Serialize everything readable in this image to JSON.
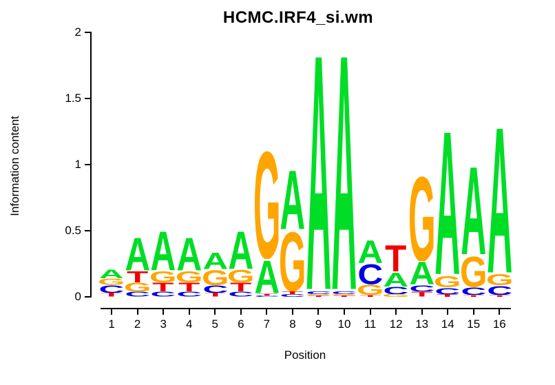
{
  "chart_data": {
    "type": "sequence_logo",
    "title": "HCMC.IRF4_si.wm",
    "xlabel": "Position",
    "ylabel": "Information content",
    "ylim": [
      0,
      2
    ],
    "ytick_values": [
      0,
      0.5,
      1,
      1.5,
      2
    ],
    "ytick_labels": [
      "0",
      "0.5",
      "1",
      "1.5",
      "2"
    ],
    "xtick_labels": [
      "1",
      "2",
      "3",
      "4",
      "5",
      "6",
      "7",
      "8",
      "9",
      "10",
      "11",
      "12",
      "13",
      "14",
      "15",
      "16"
    ],
    "base_colors": {
      "A": "#00DD26",
      "C": "#0000E5",
      "G": "#FFA500",
      "T": "#F20000"
    },
    "columns": [
      {
        "position": 1,
        "stack": [
          {
            "base": "A",
            "ic": 0.07
          },
          {
            "base": "G",
            "ic": 0.05
          },
          {
            "base": "C",
            "ic": 0.06
          },
          {
            "base": "T",
            "ic": 0.03
          }
        ]
      },
      {
        "position": 2,
        "stack": [
          {
            "base": "A",
            "ic": 0.26
          },
          {
            "base": "T",
            "ic": 0.09
          },
          {
            "base": "G",
            "ic": 0.07
          },
          {
            "base": "C",
            "ic": 0.04
          }
        ]
      },
      {
        "position": 3,
        "stack": [
          {
            "base": "A",
            "ic": 0.31
          },
          {
            "base": "G",
            "ic": 0.09
          },
          {
            "base": "T",
            "ic": 0.07
          },
          {
            "base": "C",
            "ic": 0.04
          }
        ]
      },
      {
        "position": 4,
        "stack": [
          {
            "base": "A",
            "ic": 0.26
          },
          {
            "base": "G",
            "ic": 0.09
          },
          {
            "base": "T",
            "ic": 0.07
          },
          {
            "base": "C",
            "ic": 0.04
          }
        ]
      },
      {
        "position": 5,
        "stack": [
          {
            "base": "A",
            "ic": 0.13
          },
          {
            "base": "G",
            "ic": 0.12
          },
          {
            "base": "C",
            "ic": 0.06
          },
          {
            "base": "T",
            "ic": 0.03
          }
        ]
      },
      {
        "position": 6,
        "stack": [
          {
            "base": "A",
            "ic": 0.3
          },
          {
            "base": "G",
            "ic": 0.1
          },
          {
            "base": "T",
            "ic": 0.07
          },
          {
            "base": "C",
            "ic": 0.04
          }
        ]
      },
      {
        "position": 7,
        "stack": [
          {
            "base": "G",
            "ic": 0.85
          },
          {
            "base": "A",
            "ic": 0.26
          },
          {
            "base": "T",
            "ic": 0.015
          },
          {
            "base": "C",
            "ic": 0.01
          }
        ]
      },
      {
        "position": 8,
        "stack": [
          {
            "base": "A",
            "ic": 0.47
          },
          {
            "base": "G",
            "ic": 0.47
          },
          {
            "base": "T",
            "ic": 0.02
          },
          {
            "base": "C",
            "ic": 0.02
          }
        ]
      },
      {
        "position": 9,
        "stack": [
          {
            "base": "A",
            "ic": 1.87
          },
          {
            "base": "C",
            "ic": 0.02
          },
          {
            "base": "G",
            "ic": 0.01
          },
          {
            "base": "T",
            "ic": 0.01
          }
        ]
      },
      {
        "position": 10,
        "stack": [
          {
            "base": "A",
            "ic": 1.87
          },
          {
            "base": "C",
            "ic": 0.02
          },
          {
            "base": "G",
            "ic": 0.01
          },
          {
            "base": "T",
            "ic": 0.01
          }
        ]
      },
      {
        "position": 11,
        "stack": [
          {
            "base": "A",
            "ic": 0.18
          },
          {
            "base": "C",
            "ic": 0.16
          },
          {
            "base": "G",
            "ic": 0.08
          },
          {
            "base": "T",
            "ic": 0.015
          }
        ]
      },
      {
        "position": 12,
        "stack": [
          {
            "base": "T",
            "ic": 0.21
          },
          {
            "base": "A",
            "ic": 0.11
          },
          {
            "base": "C",
            "ic": 0.06
          },
          {
            "base": "G",
            "ic": 0.02
          }
        ]
      },
      {
        "position": 13,
        "stack": [
          {
            "base": "G",
            "ic": 0.67
          },
          {
            "base": "A",
            "ic": 0.18
          },
          {
            "base": "C",
            "ic": 0.05
          },
          {
            "base": "T",
            "ic": 0.04
          }
        ]
      },
      {
        "position": 14,
        "stack": [
          {
            "base": "A",
            "ic": 1.14
          },
          {
            "base": "G",
            "ic": 0.09
          },
          {
            "base": "C",
            "ic": 0.05
          },
          {
            "base": "T",
            "ic": 0.02
          }
        ]
      },
      {
        "position": 15,
        "stack": [
          {
            "base": "A",
            "ic": 0.7
          },
          {
            "base": "G",
            "ic": 0.24
          },
          {
            "base": "C",
            "ic": 0.06
          },
          {
            "base": "T",
            "ic": 0.015
          }
        ]
      },
      {
        "position": 16,
        "stack": [
          {
            "base": "A",
            "ic": 1.16
          },
          {
            "base": "G",
            "ic": 0.09
          },
          {
            "base": "C",
            "ic": 0.07
          },
          {
            "base": "T",
            "ic": 0.015
          }
        ]
      }
    ],
    "layout": {
      "grid": false,
      "legend": "none",
      "stack_order": "largest-on-top"
    }
  }
}
